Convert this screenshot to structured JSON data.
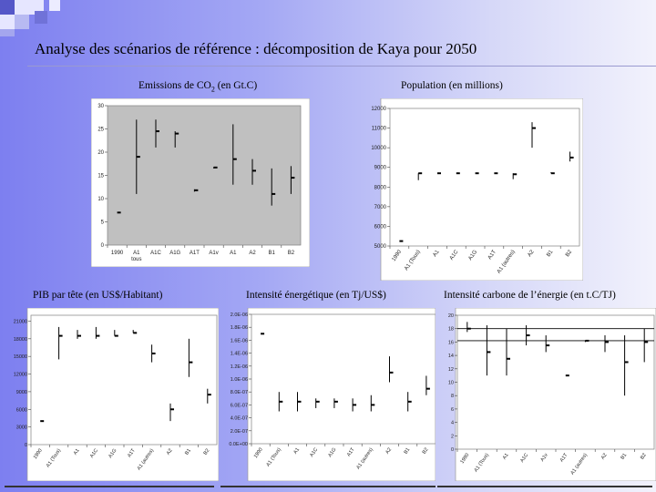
{
  "slide": {
    "title": "Analyse des scénarios de référence : décomposition de Kaya pour 2050",
    "accent_colors": {
      "bg_left": "#7d7ff0",
      "bg_right": "#f2f2fc",
      "square_dark": "#5557c8",
      "square_light": "#e6e6ff"
    }
  },
  "labels": {
    "co2_pre": "Emissions de CO",
    "co2_sub": "2",
    "co2_post": " (en Gt.C)",
    "pop": "Population (en millions)",
    "pib": "PIB par tête (en US$/Habitant)",
    "ie": "Intensité énergétique (en Tj/US$)",
    "ic": "Intensité carbone de l’énergie (en t.C/TJ)"
  },
  "chart_data": [
    {
      "id": "co2",
      "type": "range",
      "title": "Emissions de CO2 (en Gt.C)",
      "categories": [
        "1990",
        "A1\ntous",
        "A1C",
        "A1G",
        "A1T",
        "A1v",
        "A1",
        "A2",
        "B1",
        "B2"
      ],
      "ylim": [
        0,
        30
      ],
      "yticks": [
        0,
        5,
        10,
        15,
        20,
        25,
        30
      ],
      "ytick_labels": [
        "0",
        "5",
        "10",
        "15",
        "20",
        "25",
        "30"
      ],
      "rotate_labels": false,
      "label_size": 6,
      "plot_bg": "#c0c0c0",
      "series": [
        {
          "name": "min",
          "values": [
            7,
            11,
            21,
            21,
            11.5,
            16.5,
            13,
            13,
            8.5,
            11
          ]
        },
        {
          "name": "median",
          "values": [
            7,
            19,
            24.5,
            24,
            11.8,
            16.7,
            18.5,
            16,
            11,
            14.5
          ]
        },
        {
          "name": "max",
          "values": [
            7,
            27,
            27,
            24.5,
            12,
            16.8,
            26,
            18.5,
            16.5,
            17
          ]
        }
      ]
    },
    {
      "id": "pop",
      "type": "range",
      "title": "Population (en millions)",
      "categories": [
        "1990",
        "A1 (Tous)",
        "A1",
        "A1C",
        "A1G",
        "A1T",
        "A1 (autres)",
        "A2",
        "B1",
        "B2"
      ],
      "ylim": [
        5000,
        12000
      ],
      "yticks": [
        5000,
        6000,
        7000,
        8000,
        9000,
        10000,
        11000,
        12000
      ],
      "ytick_labels": [
        "5000",
        "6000",
        "7000",
        "8000",
        "9000",
        "10000",
        "11000",
        "12000"
      ],
      "rotate_labels": true,
      "label_size": 6,
      "plot_bg": "#ffffff",
      "series": [
        {
          "name": "min",
          "values": [
            5250,
            8350,
            8700,
            8700,
            8700,
            8700,
            8400,
            10000,
            8700,
            9300
          ]
        },
        {
          "name": "median",
          "values": [
            5250,
            8700,
            8700,
            8700,
            8700,
            8700,
            8650,
            11000,
            8700,
            9500
          ]
        },
        {
          "name": "max",
          "values": [
            5250,
            8700,
            8700,
            8700,
            8700,
            8700,
            8700,
            11300,
            8750,
            9800
          ]
        }
      ]
    },
    {
      "id": "pib",
      "type": "range",
      "title": "PIB par tête (en US$/Habitant)",
      "categories": [
        "1990",
        "A1 (Tous)",
        "A1",
        "A1C",
        "A1G",
        "A1T",
        "A1 (autres)",
        "A2",
        "B1",
        "B2"
      ],
      "ylim": [
        0,
        22000
      ],
      "yticks": [
        0,
        3000,
        6000,
        9000,
        12000,
        15000,
        18000,
        21000
      ],
      "ytick_labels": [
        "0",
        "3000",
        "6000",
        "9000",
        "12000",
        "15000",
        "18000",
        "21000"
      ],
      "rotate_labels": true,
      "label_size": 5.5,
      "plot_bg": "#ffffff",
      "series": [
        {
          "name": "min",
          "values": [
            4000,
            14500,
            18000,
            18000,
            18500,
            19000,
            14000,
            4000,
            11500,
            7000
          ]
        },
        {
          "name": "median",
          "values": [
            4000,
            18500,
            18500,
            18500,
            18500,
            19000,
            15500,
            6000,
            14000,
            8500
          ]
        },
        {
          "name": "max",
          "values": [
            4000,
            20000,
            19500,
            20000,
            19500,
            19500,
            17000,
            7000,
            18000,
            9500
          ]
        }
      ]
    },
    {
      "id": "ie",
      "type": "range",
      "title": "Intensité énergétique (en Tj/US$)",
      "categories": [
        "1990",
        "A1 (Tous)",
        "A1",
        "A1C",
        "A1G",
        "A1T",
        "A1 (autres)",
        "A2",
        "B1",
        "B2"
      ],
      "ylim": [
        0,
        20
      ],
      "yticks": [
        0,
        2,
        4,
        6,
        8,
        10,
        12,
        14,
        16,
        18,
        20
      ],
      "ytick_labels": [
        "0.0E+00",
        "2.0E-07",
        "4.0E-07",
        "6.0E-07",
        "8.0E-07",
        "1.0E-06",
        "1.2E-06",
        "1.4E-06",
        "1.6E-06",
        "1.8E-06",
        "2.0E-06"
      ],
      "rotate_labels": true,
      "label_size": 5.5,
      "plot_bg": "#ffffff",
      "series": [
        {
          "name": "min",
          "values": [
            17,
            5,
            5,
            5.5,
            5.5,
            5,
            5,
            9.5,
            5,
            7.5
          ]
        },
        {
          "name": "median",
          "values": [
            17,
            6.5,
            6.5,
            6.5,
            6.5,
            6,
            6,
            11,
            6.5,
            8.5
          ]
        },
        {
          "name": "max",
          "values": [
            17,
            8,
            8,
            7,
            7,
            7,
            7.5,
            13.5,
            8,
            10.5
          ]
        }
      ]
    },
    {
      "id": "ic",
      "type": "range",
      "title": "Intensité carbone de l’énergie (en t.C/TJ)",
      "categories": [
        "1990",
        "A1 (Tous)",
        "A1",
        "A1C",
        "A1v",
        "A1T",
        "A1 (autres)",
        "A2",
        "B1",
        "B2"
      ],
      "ylim": [
        0,
        20
      ],
      "yticks": [
        0,
        2,
        4,
        6,
        8,
        10,
        12,
        14,
        16,
        18,
        20
      ],
      "ytick_labels": [
        "0",
        "2",
        "4",
        "6",
        "8",
        "10",
        "12",
        "14",
        "16",
        "18",
        "20"
      ],
      "rotate_labels": true,
      "label_size": 5.5,
      "plot_bg": "#ffffff",
      "reference_lines": [
        18,
        16.2
      ],
      "series": [
        {
          "name": "min",
          "values": [
            17.5,
            11,
            11,
            15.5,
            14.5,
            11,
            16,
            14.5,
            8,
            13
          ]
        },
        {
          "name": "median",
          "values": [
            18,
            14.5,
            13.5,
            17,
            15.5,
            11,
            16.2,
            16,
            13,
            16
          ]
        },
        {
          "name": "max",
          "values": [
            19,
            18.5,
            18,
            18.5,
            17,
            11,
            16.2,
            17,
            17,
            18
          ]
        }
      ]
    }
  ]
}
